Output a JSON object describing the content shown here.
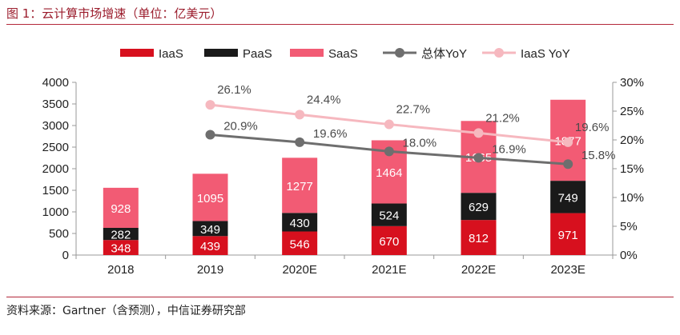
{
  "header": {
    "title": "图 1：云计算市场增速（单位：亿美元）"
  },
  "footer": {
    "source": "资料来源：Gartner（含预测），中信证券研究部"
  },
  "chart_data": {
    "type": "bar",
    "stacked": true,
    "categories": [
      "2018",
      "2019",
      "2020E",
      "2021E",
      "2022E",
      "2023E"
    ],
    "series": [
      {
        "name": "IaaS",
        "kind": "bar",
        "color": "#d7101e",
        "values": [
          348,
          439,
          546,
          670,
          812,
          971
        ]
      },
      {
        "name": "PaaS",
        "kind": "bar",
        "color": "#1a1a1a",
        "values": [
          282,
          349,
          430,
          524,
          629,
          749
        ]
      },
      {
        "name": "SaaS",
        "kind": "bar",
        "color": "#f25b74",
        "values": [
          928,
          1095,
          1277,
          1464,
          1665,
          1877
        ]
      },
      {
        "name": "总体YoY",
        "kind": "line",
        "axis": "right",
        "color": "#6e6e6e",
        "values": [
          null,
          20.9,
          19.6,
          18.0,
          16.9,
          15.8
        ],
        "labels": [
          "",
          "20.9%",
          "19.6%",
          "18.0%",
          "16.9%",
          "15.8%"
        ]
      },
      {
        "name": "IaaS YoY",
        "kind": "line",
        "axis": "right",
        "color": "#f6b8bf",
        "values": [
          null,
          26.1,
          24.4,
          22.7,
          21.2,
          19.6
        ],
        "labels": [
          "",
          "26.1%",
          "24.4%",
          "22.7%",
          "21.2%",
          "19.6%"
        ]
      }
    ],
    "y_left": {
      "lim": [
        0,
        4000
      ],
      "ticks": [
        "0",
        "500",
        "1000",
        "1500",
        "2000",
        "2500",
        "3000",
        "3500",
        "4000"
      ]
    },
    "y_right": {
      "lim": [
        0,
        30
      ],
      "ticks": [
        "0%",
        "5%",
        "10%",
        "15%",
        "20%",
        "25%",
        "30%"
      ]
    },
    "grid": false,
    "legend_position": "top"
  }
}
